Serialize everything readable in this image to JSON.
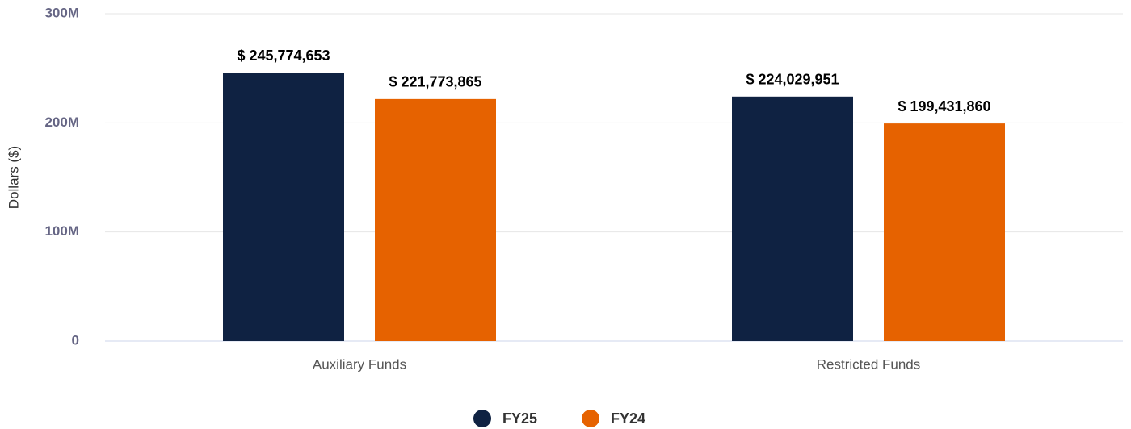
{
  "chart_data": {
    "type": "bar",
    "categories": [
      "Auxiliary Funds",
      "Restricted Funds"
    ],
    "series": [
      {
        "name": "FY25",
        "color": "#0f2242",
        "values": [
          245774653,
          224029951
        ],
        "value_labels": [
          "$ 245,774,653",
          "$ 224,029,951"
        ]
      },
      {
        "name": "FY24",
        "color": "#e66200",
        "values": [
          221773865,
          199431860
        ],
        "value_labels": [
          "$ 221,773,865",
          "$ 199,431,860"
        ]
      }
    ],
    "y_label": "Dollars ($)",
    "ylim": [
      0,
      300000000
    ],
    "yticks": [
      0,
      {
        "value": 100000000,
        "label": "100M"
      },
      {
        "value": 200000000,
        "label": "200M"
      },
      {
        "value": 300000000,
        "label": "300M"
      }
    ],
    "grid": true,
    "legend": "bottom"
  }
}
